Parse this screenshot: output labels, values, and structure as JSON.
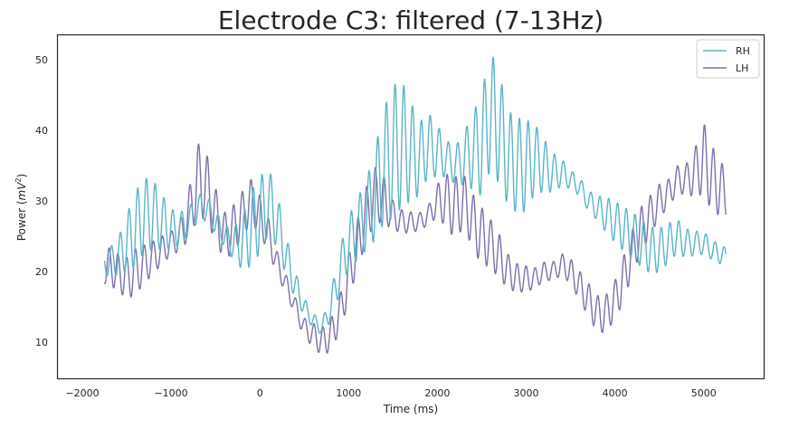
{
  "chart_data": {
    "type": "line",
    "title": "Electrode C3: filtered (7-13Hz)",
    "xlabel": "Time (ms)",
    "ylabel_prefix": "Power (",
    "ylabel_unit": "mV",
    "ylabel_exp": "2",
    "ylabel_suffix": ")",
    "xlim": [
      -2280,
      5680
    ],
    "ylim": [
      4.8,
      53.5
    ],
    "xticks": [
      -2000,
      -1000,
      0,
      1000,
      2000,
      3000,
      4000,
      5000
    ],
    "xtick_labels": [
      "−2000",
      "−1000",
      "0",
      "1000",
      "2000",
      "3000",
      "4000",
      "5000"
    ],
    "yticks": [
      10,
      20,
      30,
      40,
      50
    ],
    "ytick_labels": [
      "10",
      "20",
      "30",
      "40",
      "50"
    ],
    "grid": false,
    "legend_position": "top-right",
    "x_start": -1750,
    "x_end": 5250,
    "series": [
      {
        "name": "RH",
        "color": "#5ab4c9",
        "oscillation_freq_hz": 10,
        "envelope": {
          "x": [
            -1750,
            -1600,
            -1500,
            -1400,
            -1300,
            -1200,
            -1100,
            -1000,
            -900,
            -800,
            -700,
            -600,
            -500,
            -400,
            -300,
            -200,
            -100,
            0,
            100,
            200,
            300,
            400,
            500,
            600,
            700,
            800,
            900,
            1000,
            1100,
            1200,
            1300,
            1400,
            1500,
            1600,
            1700,
            1800,
            1900,
            2000,
            2100,
            2200,
            2300,
            2400,
            2500,
            2600,
            2700,
            2800,
            2900,
            3000,
            3100,
            3200,
            3300,
            3400,
            3500,
            3600,
            3700,
            3800,
            3900,
            4000,
            4100,
            4200,
            4300,
            4400,
            4500,
            4600,
            4700,
            4800,
            4900,
            5000,
            5100,
            5250
          ],
          "center": [
            21,
            22,
            24,
            26,
            28,
            28,
            27,
            26,
            26,
            27,
            29,
            29,
            27,
            25,
            24,
            24,
            26,
            28,
            30,
            27,
            22,
            18,
            15,
            13,
            12,
            15,
            20,
            24,
            26,
            28,
            31,
            35,
            37,
            38,
            37,
            36,
            38,
            37,
            36,
            35,
            36,
            37,
            38,
            43,
            40,
            36,
            35,
            35,
            36,
            35,
            34,
            34,
            33,
            32,
            30,
            29,
            28,
            27,
            26,
            25,
            24,
            23,
            23,
            24,
            25,
            24,
            24,
            24,
            23,
            22
          ],
          "amp": [
            1.5,
            2,
            3,
            4,
            4,
            4,
            3.5,
            3,
            3,
            3,
            3,
            2.5,
            2,
            1.5,
            2,
            3,
            4,
            4,
            3.5,
            3,
            2.5,
            2,
            1.5,
            1.5,
            1.5,
            3,
            4,
            4,
            4,
            4,
            5,
            6,
            7,
            7,
            6,
            5,
            5,
            5,
            4,
            4,
            5,
            6,
            7,
            7,
            6,
            5,
            5,
            5,
            4,
            3.5,
            3,
            2.5,
            2,
            2,
            2,
            2,
            2.5,
            2.5,
            2.5,
            2.5,
            2.5,
            2.5,
            2.5,
            2.5,
            2.5,
            2.5,
            2.5,
            2.5,
            2,
            1.5
          ]
        }
      },
      {
        "name": "LH",
        "color": "#7f6fac",
        "oscillation_freq_hz": 10,
        "envelope": {
          "x": [
            -1750,
            -1600,
            -1500,
            -1400,
            -1300,
            -1200,
            -1100,
            -1000,
            -900,
            -800,
            -700,
            -600,
            -500,
            -400,
            -300,
            -200,
            -100,
            0,
            100,
            200,
            300,
            400,
            500,
            600,
            700,
            800,
            900,
            1000,
            1100,
            1200,
            1300,
            1400,
            1500,
            1600,
            1700,
            1800,
            1900,
            2000,
            2100,
            2200,
            2300,
            2400,
            2500,
            2600,
            2700,
            2800,
            2900,
            3000,
            3100,
            3200,
            3300,
            3400,
            3500,
            3600,
            3700,
            3800,
            3900,
            4000,
            4100,
            4200,
            4300,
            4400,
            4500,
            4600,
            4700,
            4800,
            4900,
            5000,
            5100,
            5250
          ],
          "center": [
            21,
            20,
            19,
            20,
            21,
            22,
            23,
            24,
            25,
            28,
            33,
            32,
            28,
            25,
            26,
            28,
            30,
            28,
            25,
            21,
            18,
            15,
            12,
            11,
            10,
            11,
            14,
            19,
            24,
            28,
            31,
            30,
            28,
            27,
            27,
            27,
            28,
            30,
            30,
            29,
            30,
            27,
            25,
            24,
            22,
            20,
            19,
            19,
            19,
            20,
            20,
            21,
            20,
            18,
            16,
            14,
            14,
            16,
            19,
            23,
            26,
            28,
            30,
            31,
            33,
            33,
            34,
            36,
            33,
            31
          ],
          "amp": [
            2,
            2,
            2.5,
            3,
            3,
            3,
            3,
            2.5,
            3,
            4,
            5,
            4,
            3,
            2.5,
            2.5,
            2.5,
            2.5,
            2.5,
            2.5,
            2,
            2,
            2,
            2,
            2,
            2,
            2,
            2,
            2.5,
            2.5,
            3,
            3,
            3,
            2,
            2,
            2,
            2,
            2,
            3,
            4,
            4,
            3,
            3,
            3,
            2.5,
            2.5,
            2,
            2,
            2,
            2,
            2,
            2,
            2,
            2,
            2,
            2,
            2,
            2,
            2,
            2.5,
            2.5,
            3,
            3,
            3,
            3,
            3,
            3,
            4,
            5,
            4,
            2.5
          ]
        }
      }
    ]
  }
}
